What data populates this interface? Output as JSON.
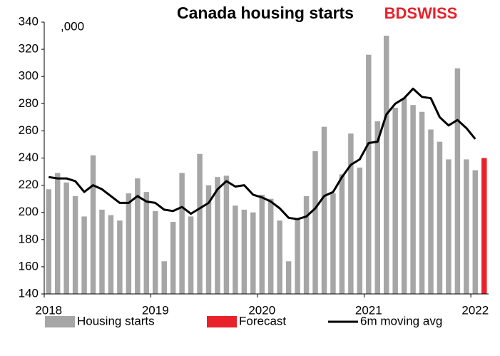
{
  "chart_data": {
    "type": "bar",
    "title": "Canada housing starts",
    "unit_label": ",000",
    "logo": "BDSWISS",
    "categories": [
      "2018",
      null,
      null,
      null,
      null,
      null,
      null,
      null,
      null,
      null,
      null,
      null,
      "2019",
      null,
      null,
      null,
      null,
      null,
      null,
      null,
      null,
      null,
      null,
      null,
      "2020",
      null,
      null,
      null,
      null,
      null,
      null,
      null,
      null,
      null,
      null,
      null,
      "2021",
      null,
      null,
      null,
      null,
      null,
      null,
      null,
      null,
      null,
      null,
      null,
      "2022",
      null
    ],
    "series": [
      {
        "name": "Housing starts",
        "type": "bar",
        "color": "#a6a6a6",
        "values": [
          217,
          229,
          222,
          212,
          197,
          242,
          202,
          198,
          194,
          214,
          225,
          215,
          201,
          164,
          193,
          229,
          197,
          243,
          220,
          226,
          227,
          205,
          202,
          200,
          213,
          210,
          194,
          164,
          195,
          212,
          245,
          263,
          214,
          228,
          258,
          233,
          316,
          267,
          330,
          277,
          284,
          279,
          274,
          261,
          252,
          239,
          306,
          239,
          231,
          null
        ]
      },
      {
        "name": "Forecast",
        "type": "bar",
        "color": "#e8212a",
        "values": [
          null,
          null,
          null,
          null,
          null,
          null,
          null,
          null,
          null,
          null,
          null,
          null,
          null,
          null,
          null,
          null,
          null,
          null,
          null,
          null,
          null,
          null,
          null,
          null,
          null,
          null,
          null,
          null,
          null,
          null,
          null,
          null,
          null,
          null,
          null,
          null,
          null,
          null,
          null,
          null,
          null,
          null,
          null,
          null,
          null,
          null,
          null,
          null,
          null,
          240
        ]
      },
      {
        "name": "6m moving avg",
        "type": "line",
        "color": "#000000",
        "values": [
          226,
          225,
          225,
          223,
          215,
          220,
          217,
          212,
          207,
          207,
          212,
          208,
          207,
          202,
          201,
          204,
          199,
          203,
          207,
          217,
          223,
          219,
          220,
          213,
          211,
          208,
          203,
          196,
          195,
          197,
          203,
          212,
          215,
          226,
          235,
          239,
          251,
          252,
          272,
          280,
          284,
          291,
          285,
          284,
          270,
          264,
          268,
          262,
          254,
          null
        ]
      }
    ],
    "ylim": [
      140,
      340
    ],
    "yticks": [
      140,
      160,
      180,
      200,
      220,
      240,
      260,
      280,
      300,
      320,
      340
    ],
    "grid": false,
    "legend": "bottom"
  }
}
